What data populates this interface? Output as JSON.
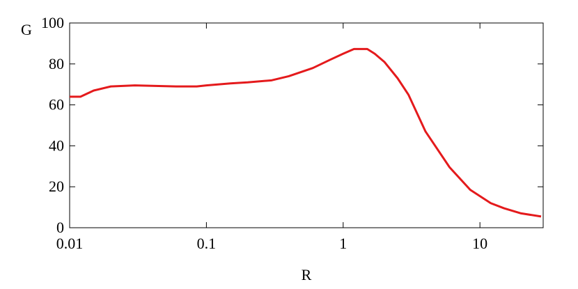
{
  "chart_data": {
    "type": "line",
    "xlabel": "R",
    "ylabel": "G",
    "xscale": "log",
    "x": [
      0.01,
      0.012,
      0.015,
      0.02,
      0.03,
      0.06,
      0.085,
      0.1,
      0.15,
      0.2,
      0.3,
      0.4,
      0.6,
      0.8,
      1,
      1.2,
      1.5,
      1.7,
      2,
      2.5,
      3,
      4,
      6,
      8.5,
      12,
      15,
      20,
      28
    ],
    "series": [
      {
        "color": "#e41a1c",
        "values": [
          64,
          64,
          67,
          69,
          69.5,
          69,
          69,
          69.5,
          70.5,
          71,
          72,
          74,
          78,
          82,
          85,
          87.3,
          87.3,
          85,
          81,
          73,
          65,
          47,
          29.5,
          18.5,
          12,
          9.5,
          7,
          5.5
        ]
      }
    ],
    "xlim": [
      0.01,
      29
    ],
    "ylim": [
      0,
      100
    ],
    "xticks": [
      0.01,
      0.1,
      1,
      10
    ],
    "yticks": [
      0,
      20,
      40,
      60,
      80,
      100
    ]
  }
}
